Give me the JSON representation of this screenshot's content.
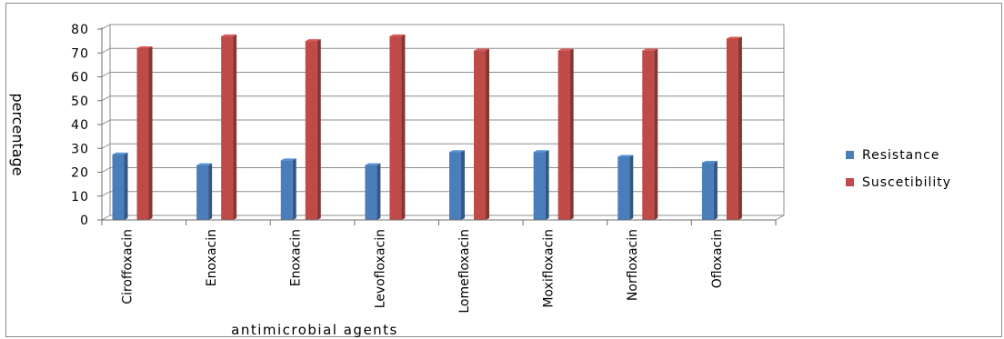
{
  "chart_data": {
    "type": "bar",
    "title": "",
    "xlabel": "antimicrobial agents",
    "ylabel": "percentage",
    "ylim": [
      0,
      80
    ],
    "yticks": [
      0,
      10,
      20,
      30,
      40,
      50,
      60,
      70,
      80
    ],
    "grid": true,
    "legend_position": "right",
    "categories": [
      "Ciroffoxacin",
      "Enoxacin",
      "Enoxacin",
      "Levofloxacin",
      "Lomefloxacin",
      "Moxifloxacin",
      "Norfloxacin",
      "Ofloxacin"
    ],
    "series": [
      {
        "name": "Resistance",
        "color": "#4a7ebb",
        "values": [
          27.5,
          23,
          25,
          23,
          28.5,
          28.5,
          26.5,
          24
        ]
      },
      {
        "name": "Suscetibility",
        "color": "#be4b48",
        "values": [
          72,
          77,
          75,
          77,
          71,
          71,
          71,
          76
        ]
      }
    ]
  }
}
